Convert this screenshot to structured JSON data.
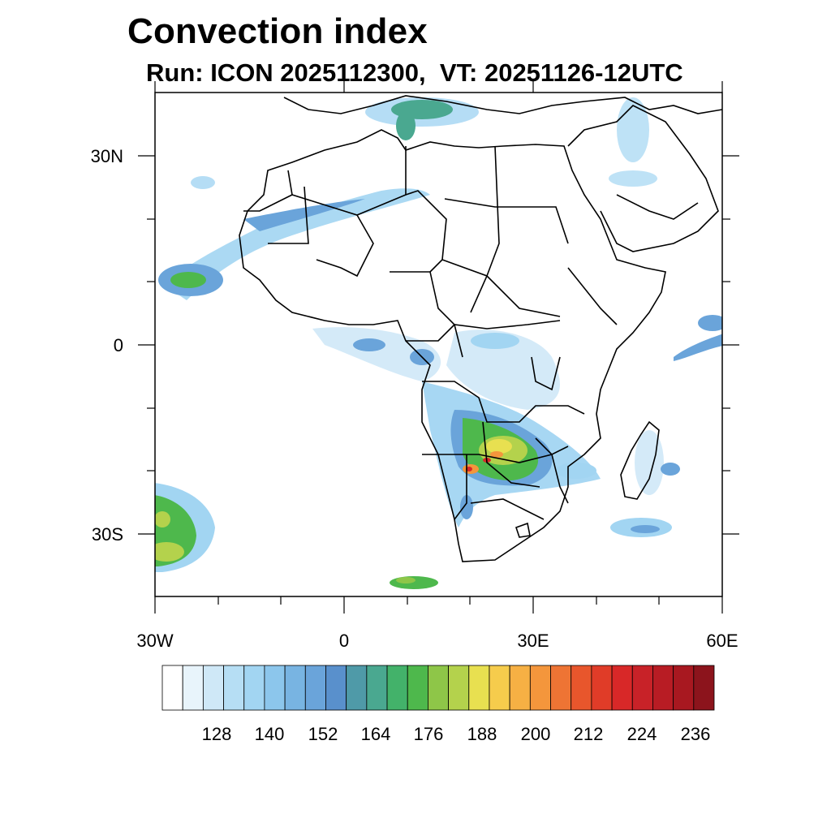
{
  "title": "Convection index",
  "subtitle": "Run: ICON 2025112300,  VT: 20251126-12UTC",
  "map": {
    "lat_labels": [
      "30N",
      "0",
      "30S"
    ],
    "lon_labels": [
      "30W",
      "0",
      "30E",
      "60E"
    ]
  },
  "colorbar": {
    "tick_labels": [
      "128",
      "140",
      "152",
      "164",
      "176",
      "188",
      "200",
      "212",
      "224",
      "236"
    ],
    "colors": [
      "#ffffff",
      "#e8f4fb",
      "#cfe8f7",
      "#b6def4",
      "#a2d5f2",
      "#8cc6ec",
      "#78b4e2",
      "#6aa4da",
      "#5990cc",
      "#4f9aa8",
      "#4aa890",
      "#43b26a",
      "#4eb84c",
      "#8ec648",
      "#b4d24c",
      "#e8e050",
      "#f6cc4c",
      "#f6b044",
      "#f4963c",
      "#ee7434",
      "#e8562c",
      "#e03c28",
      "#d82828",
      "#c82228",
      "#b81c24",
      "#a81820",
      "#8c141c"
    ]
  }
}
